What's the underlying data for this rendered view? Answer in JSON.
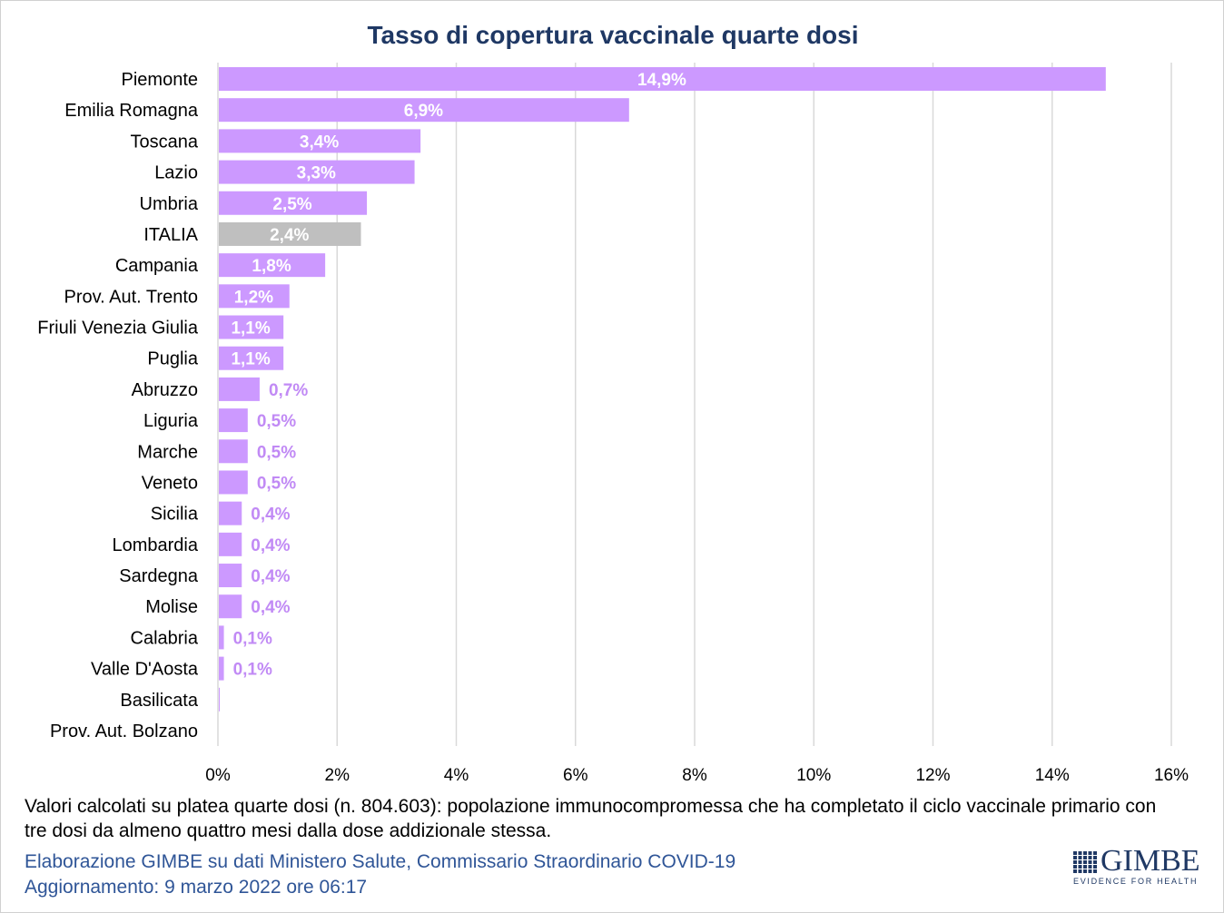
{
  "colors": {
    "bar": "#CC99FF",
    "label_inside": "#FFFFFF",
    "label_outside": "#C18AF5",
    "title": "#1F3864",
    "footer_blue": "#2F5597",
    "logo": "#1F3864",
    "grid": "#D9D9D9",
    "text": "#000000"
  },
  "chart_data": {
    "type": "bar",
    "orientation": "horizontal",
    "title": "Tasso di copertura vaccinale quarte dosi",
    "categories": [
      "Piemonte",
      "Emilia Romagna",
      "Toscana",
      "Lazio",
      "Umbria",
      "ITALIA",
      "Campania",
      "Prov. Aut. Trento",
      "Friuli Venezia Giulia",
      "Puglia",
      "Abruzzo",
      "Liguria",
      "Marche",
      "Veneto",
      "Sicilia",
      "Lombardia",
      "Sardegna",
      "Molise",
      "Calabria",
      "Valle D'Aosta",
      "Basilicata",
      "Prov. Aut. Bolzano"
    ],
    "values": [
      14.9,
      6.9,
      3.4,
      3.3,
      2.5,
      2.4,
      1.8,
      1.2,
      1.1,
      1.1,
      0.7,
      0.5,
      0.5,
      0.5,
      0.4,
      0.4,
      0.4,
      0.4,
      0.1,
      0.1,
      0.02,
      0
    ],
    "value_labels": [
      "14,9%",
      "6,9%",
      "3,4%",
      "3,3%",
      "2,5%",
      "2,4%",
      "1,8%",
      "1,2%",
      "1,1%",
      "1,1%",
      "0,7%",
      "0,5%",
      "0,5%",
      "0,5%",
      "0,4%",
      "0,4%",
      "0,4%",
      "0,4%",
      "0,1%",
      "0,1%",
      null,
      null
    ],
    "bar_colors": [
      "#CC99FF",
      "#CC99FF",
      "#CC99FF",
      "#CC99FF",
      "#CC99FF",
      "#BFBFBF",
      "#CC99FF",
      "#CC99FF",
      "#CC99FF",
      "#CC99FF",
      "#CC99FF",
      "#CC99FF",
      "#CC99FF",
      "#CC99FF",
      "#CC99FF",
      "#CC99FF",
      "#CC99FF",
      "#CC99FF",
      "#CC99FF",
      "#CC99FF",
      "#CC99FF",
      "#CC99FF"
    ],
    "xlim": [
      0,
      16
    ],
    "xticks": [
      "0%",
      "2%",
      "4%",
      "6%",
      "8%",
      "10%",
      "12%",
      "14%",
      "16%"
    ],
    "grid": true,
    "legend": "none"
  },
  "footer": {
    "note_lines": [
      "Valori calcolati su platea quarte dosi (n. 804.603): popolazione immunocompromessa che ha completato il ciclo vaccinale primario con",
      "tre dosi da almeno quattro mesi dalla dose addizionale stessa."
    ],
    "source": "Elaborazione GIMBE su dati Ministero Salute, Commissario Straordinario COVID-19",
    "updated": "Aggiornamento: 9 marzo 2022 ore 06:17"
  },
  "logo": {
    "icon": "gimbe-grid-icon",
    "name": "GIMBE",
    "tagline": "EVIDENCE FOR HEALTH"
  }
}
